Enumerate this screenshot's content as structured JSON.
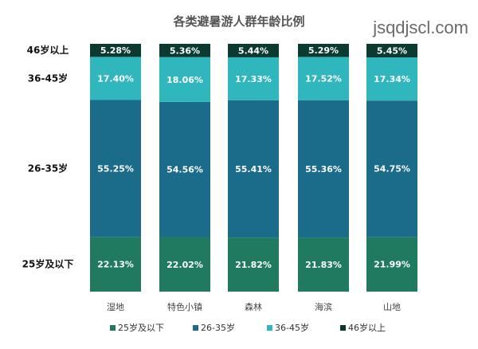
{
  "watermark": "jsqdjscl.com",
  "chart_data": {
    "type": "bar",
    "stacked": true,
    "title": "各类避暑游人群年龄比例",
    "categories": [
      "湿地",
      "特色小镇",
      "森林",
      "海滨",
      "山地"
    ],
    "series": [
      {
        "name": "25岁及以下",
        "color": "#1f7a60",
        "values": [
          22.13,
          22.02,
          21.82,
          21.83,
          21.99
        ]
      },
      {
        "name": "26-35岁",
        "color": "#1b6c8a",
        "values": [
          55.25,
          54.56,
          55.41,
          55.36,
          54.75
        ]
      },
      {
        "name": "36-45岁",
        "color": "#30b6bd",
        "values": [
          17.4,
          18.06,
          17.33,
          17.52,
          17.34
        ]
      },
      {
        "name": "46岁以上",
        "color": "#0b3b30",
        "values": [
          5.28,
          5.36,
          5.44,
          5.29,
          5.45
        ]
      }
    ],
    "value_labels": [
      [
        "22.13%",
        "22.02%",
        "21.82%",
        "21.83%",
        "21.99%"
      ],
      [
        "55.25%",
        "54.56%",
        "55.41%",
        "55.36%",
        "54.75%"
      ],
      [
        "17.40%",
        "18.06%",
        "17.33%",
        "17.52%",
        "17.34%"
      ],
      [
        "5.28%",
        "5.36%",
        "5.44%",
        "5.29%",
        "5.45%"
      ]
    ],
    "row_labels": [
      "25岁及以下",
      "26-35岁",
      "36-45岁",
      "46岁以上"
    ],
    "legend_position": "bottom",
    "ylim": [
      0,
      100
    ],
    "grid": false
  }
}
